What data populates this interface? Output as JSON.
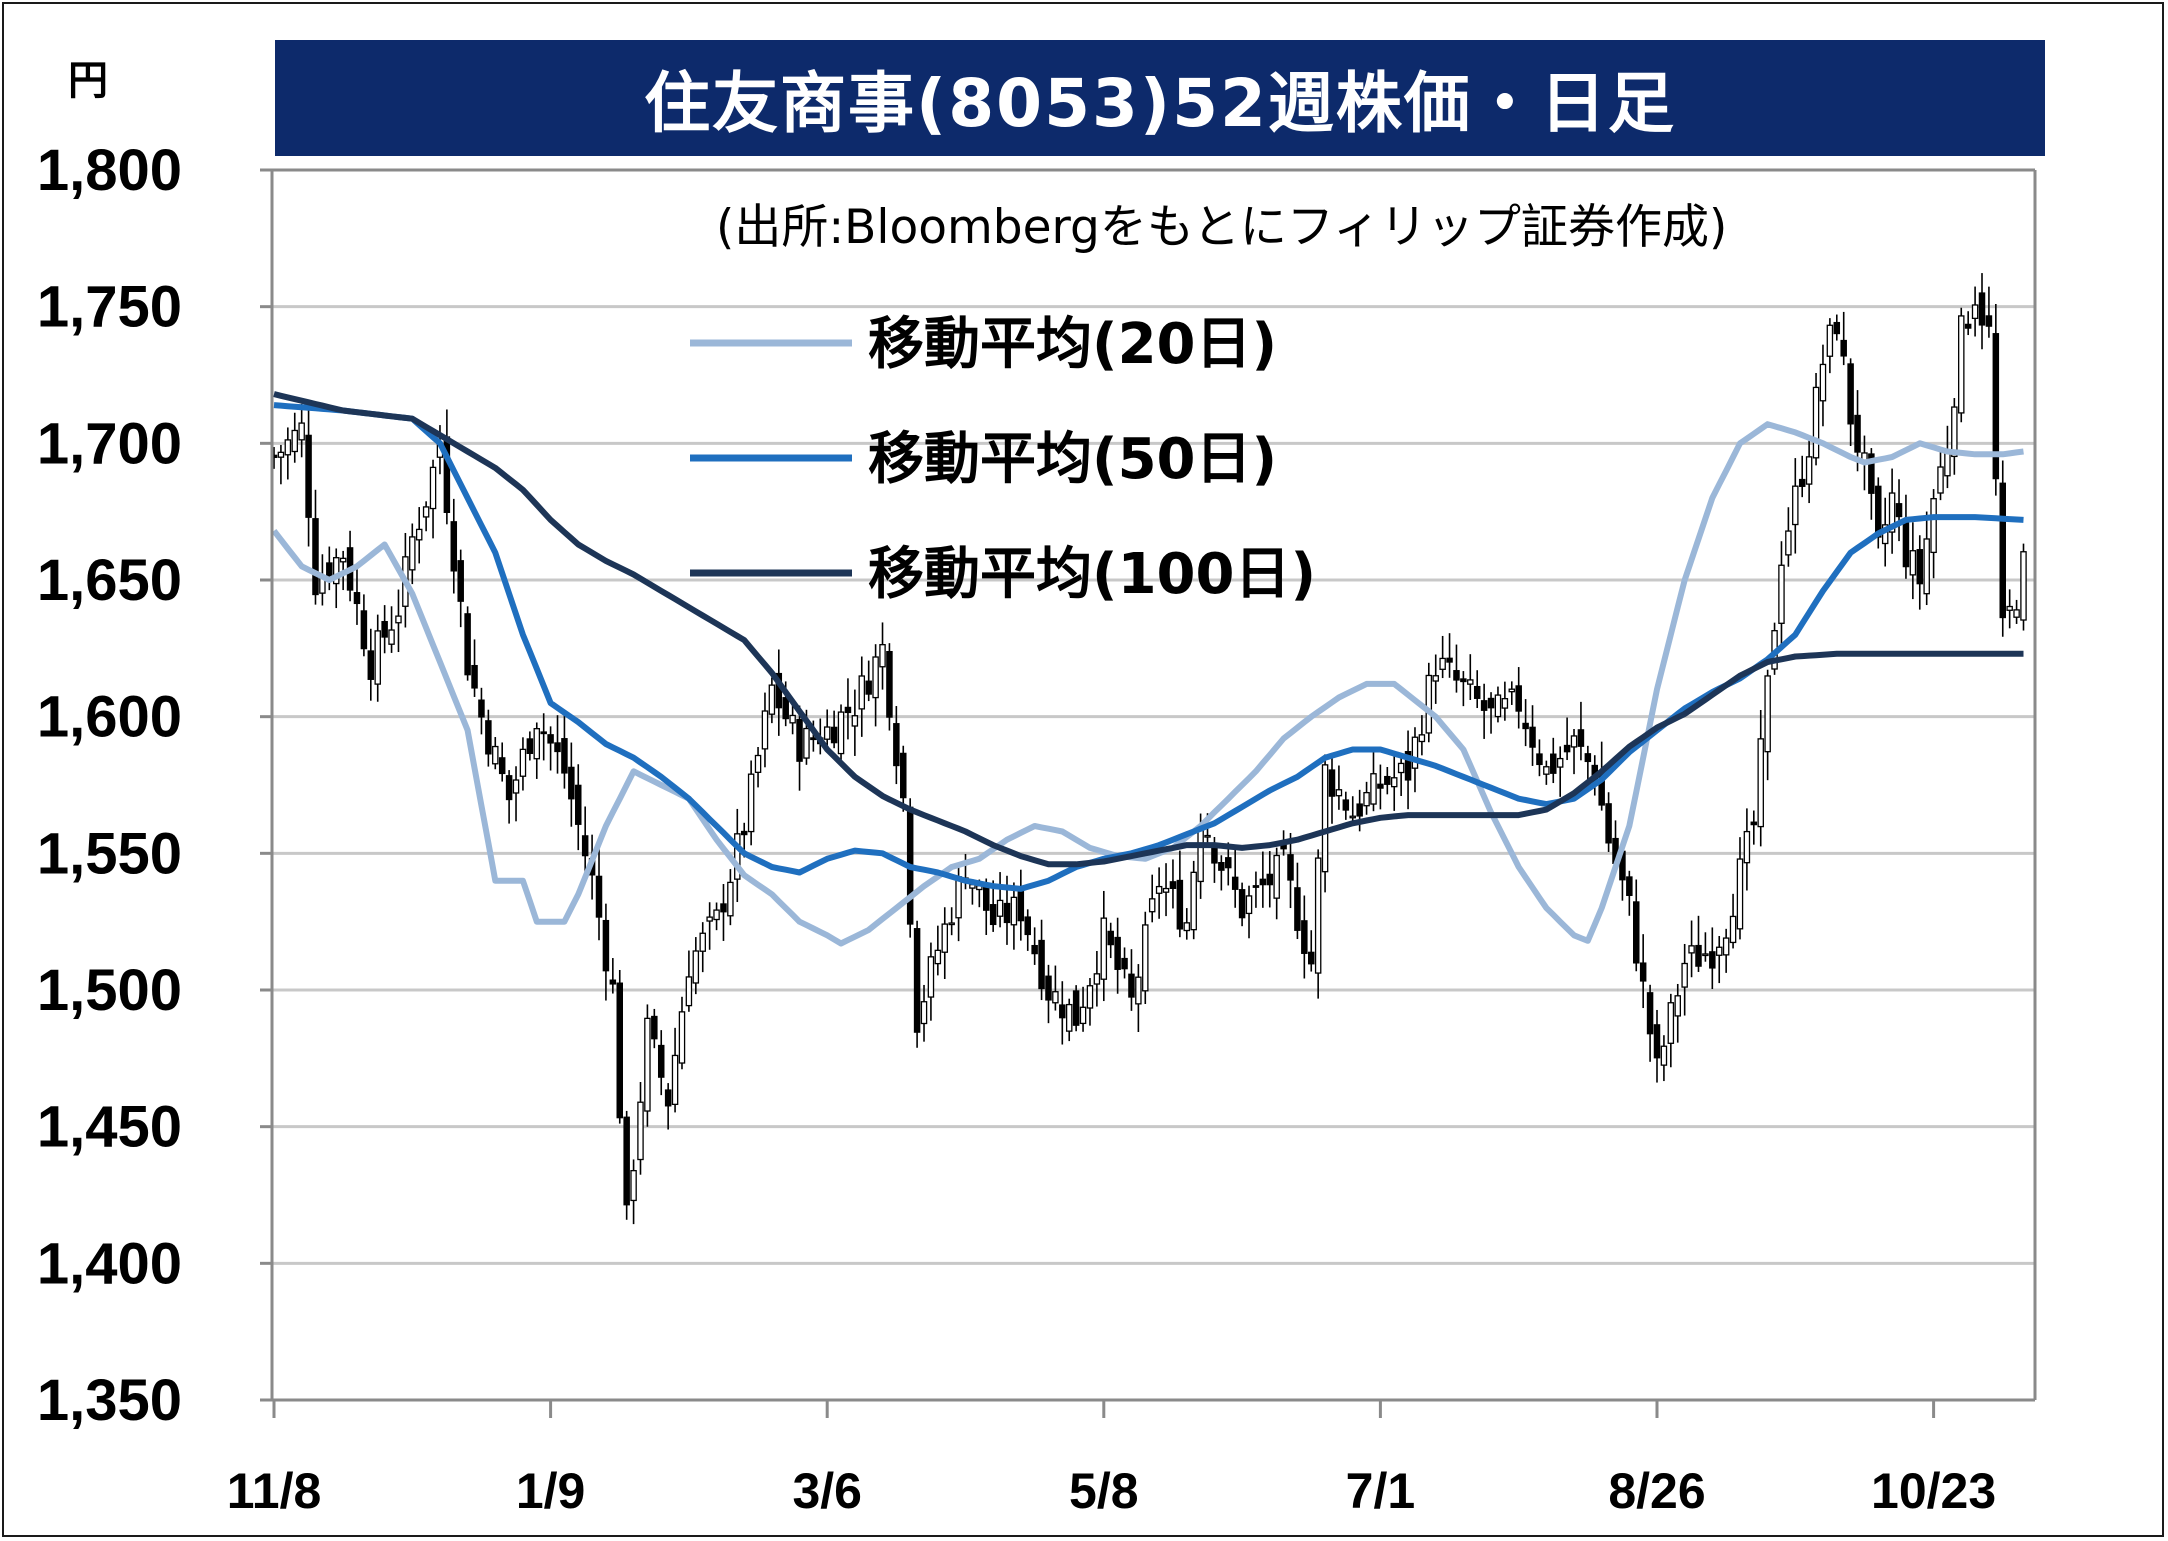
{
  "title": "住友商事(8053)52週株価・日足",
  "source": "(出所:Bloombergをもとにフィリップ証券作成)",
  "y_unit": "円",
  "colors": {
    "ma20": "#9bb7d8",
    "ma50": "#1f6fbf",
    "ma100": "#1d3557",
    "candle": "#000000",
    "title_bg": "#0d2a6b",
    "grid": "#c8c8c8"
  },
  "chart_data": {
    "type": "candlestick",
    "title": "住友商事(8053)52週株価・日足",
    "ylabel": "円",
    "ylim": [
      1350,
      1800
    ],
    "yticks": [
      1350,
      1400,
      1450,
      1500,
      1550,
      1600,
      1650,
      1700,
      1750,
      1800
    ],
    "ytick_labels": [
      "1,350",
      "1,400",
      "1,450",
      "1,500",
      "1,550",
      "1,600",
      "1,650",
      "1,700",
      "1,750",
      "1,800"
    ],
    "xtick_labels": [
      "11/8",
      "1/9",
      "3/6",
      "5/8",
      "7/1",
      "8/26",
      "10/23"
    ],
    "xtick_index": [
      0,
      40,
      80,
      120,
      160,
      200,
      240
    ],
    "n_days": 254,
    "legend": [
      {
        "name": "移動平均(20日)",
        "key": "ma20"
      },
      {
        "name": "移動平均(50日)",
        "key": "ma50"
      },
      {
        "name": "移動平均(100日)",
        "key": "ma100"
      }
    ],
    "grid": true,
    "candle_keyframes": [
      [
        0,
        1695
      ],
      [
        4,
        1705
      ],
      [
        6,
        1650
      ],
      [
        10,
        1660
      ],
      [
        14,
        1620
      ],
      [
        18,
        1640
      ],
      [
        20,
        1665
      ],
      [
        22,
        1680
      ],
      [
        24,
        1700
      ],
      [
        28,
        1620
      ],
      [
        30,
        1600
      ],
      [
        34,
        1570
      ],
      [
        38,
        1600
      ],
      [
        42,
        1580
      ],
      [
        46,
        1540
      ],
      [
        49,
        1500
      ],
      [
        51,
        1415
      ],
      [
        54,
        1485
      ],
      [
        57,
        1460
      ],
      [
        60,
        1510
      ],
      [
        64,
        1525
      ],
      [
        68,
        1560
      ],
      [
        72,
        1610
      ],
      [
        76,
        1590
      ],
      [
        80,
        1595
      ],
      [
        84,
        1605
      ],
      [
        88,
        1625
      ],
      [
        91,
        1570
      ],
      [
        93,
        1490
      ],
      [
        96,
        1515
      ],
      [
        100,
        1545
      ],
      [
        104,
        1525
      ],
      [
        108,
        1530
      ],
      [
        112,
        1500
      ],
      [
        116,
        1490
      ],
      [
        120,
        1520
      ],
      [
        124,
        1495
      ],
      [
        128,
        1540
      ],
      [
        132,
        1525
      ],
      [
        134,
        1565
      ],
      [
        138,
        1540
      ],
      [
        140,
        1530
      ],
      [
        146,
        1545
      ],
      [
        150,
        1510
      ],
      [
        152,
        1580
      ],
      [
        156,
        1565
      ],
      [
        160,
        1575
      ],
      [
        164,
        1580
      ],
      [
        168,
        1620
      ],
      [
        172,
        1610
      ],
      [
        176,
        1600
      ],
      [
        180,
        1605
      ],
      [
        184,
        1580
      ],
      [
        188,
        1590
      ],
      [
        191,
        1580
      ],
      [
        193,
        1555
      ],
      [
        196,
        1530
      ],
      [
        198,
        1500
      ],
      [
        200,
        1470
      ],
      [
        202,
        1490
      ],
      [
        204,
        1510
      ],
      [
        208,
        1515
      ],
      [
        210,
        1525
      ],
      [
        214,
        1560
      ],
      [
        216,
        1610
      ],
      [
        218,
        1660
      ],
      [
        220,
        1680
      ],
      [
        222,
        1700
      ],
      [
        224,
        1730
      ],
      [
        226,
        1745
      ],
      [
        228,
        1710
      ],
      [
        230,
        1690
      ],
      [
        232,
        1660
      ],
      [
        234,
        1680
      ],
      [
        236,
        1660
      ],
      [
        238,
        1650
      ],
      [
        240,
        1680
      ],
      [
        242,
        1700
      ],
      [
        244,
        1740
      ],
      [
        246,
        1755
      ],
      [
        248,
        1740
      ],
      [
        250,
        1630
      ],
      [
        252,
        1645
      ],
      [
        253,
        1655
      ]
    ],
    "ma20_keyframes": [
      [
        0,
        1668
      ],
      [
        4,
        1655
      ],
      [
        8,
        1650
      ],
      [
        12,
        1655
      ],
      [
        16,
        1663
      ],
      [
        20,
        1645
      ],
      [
        24,
        1620
      ],
      [
        28,
        1595
      ],
      [
        32,
        1540
      ],
      [
        36,
        1540
      ],
      [
        38,
        1525
      ],
      [
        42,
        1525
      ],
      [
        44,
        1535
      ],
      [
        48,
        1560
      ],
      [
        52,
        1580
      ],
      [
        56,
        1575
      ],
      [
        60,
        1570
      ],
      [
        64,
        1555
      ],
      [
        68,
        1542
      ],
      [
        72,
        1535
      ],
      [
        76,
        1525
      ],
      [
        80,
        1520
      ],
      [
        82,
        1517
      ],
      [
        86,
        1522
      ],
      [
        90,
        1530
      ],
      [
        94,
        1538
      ],
      [
        98,
        1545
      ],
      [
        102,
        1548
      ],
      [
        106,
        1555
      ],
      [
        110,
        1560
      ],
      [
        114,
        1558
      ],
      [
        118,
        1552
      ],
      [
        122,
        1549
      ],
      [
        126,
        1548
      ],
      [
        130,
        1552
      ],
      [
        134,
        1560
      ],
      [
        138,
        1570
      ],
      [
        142,
        1580
      ],
      [
        146,
        1592
      ],
      [
        150,
        1600
      ],
      [
        154,
        1607
      ],
      [
        158,
        1612
      ],
      [
        162,
        1612
      ],
      [
        164,
        1608
      ],
      [
        168,
        1600
      ],
      [
        172,
        1588
      ],
      [
        176,
        1565
      ],
      [
        180,
        1545
      ],
      [
        184,
        1530
      ],
      [
        188,
        1520
      ],
      [
        190,
        1518
      ],
      [
        192,
        1530
      ],
      [
        196,
        1560
      ],
      [
        200,
        1610
      ],
      [
        204,
        1650
      ],
      [
        208,
        1680
      ],
      [
        212,
        1700
      ],
      [
        216,
        1707
      ],
      [
        220,
        1704
      ],
      [
        224,
        1700
      ],
      [
        228,
        1695
      ],
      [
        230,
        1693
      ],
      [
        234,
        1695
      ],
      [
        238,
        1700
      ],
      [
        242,
        1697
      ],
      [
        246,
        1696
      ],
      [
        250,
        1696
      ],
      [
        253,
        1697
      ]
    ],
    "ma50_keyframes": [
      [
        0,
        1714
      ],
      [
        10,
        1712
      ],
      [
        20,
        1709
      ],
      [
        24,
        1700
      ],
      [
        28,
        1680
      ],
      [
        32,
        1660
      ],
      [
        36,
        1630
      ],
      [
        40,
        1605
      ],
      [
        44,
        1598
      ],
      [
        48,
        1590
      ],
      [
        52,
        1585
      ],
      [
        56,
        1578
      ],
      [
        60,
        1570
      ],
      [
        64,
        1560
      ],
      [
        68,
        1550
      ],
      [
        72,
        1545
      ],
      [
        76,
        1543
      ],
      [
        80,
        1548
      ],
      [
        84,
        1551
      ],
      [
        88,
        1550
      ],
      [
        92,
        1545
      ],
      [
        96,
        1543
      ],
      [
        100,
        1540
      ],
      [
        104,
        1538
      ],
      [
        108,
        1537
      ],
      [
        112,
        1540
      ],
      [
        116,
        1545
      ],
      [
        120,
        1548
      ],
      [
        124,
        1550
      ],
      [
        128,
        1553
      ],
      [
        132,
        1557
      ],
      [
        136,
        1561
      ],
      [
        140,
        1567
      ],
      [
        144,
        1573
      ],
      [
        148,
        1578
      ],
      [
        152,
        1585
      ],
      [
        156,
        1588
      ],
      [
        160,
        1588
      ],
      [
        164,
        1585
      ],
      [
        168,
        1582
      ],
      [
        172,
        1578
      ],
      [
        176,
        1574
      ],
      [
        180,
        1570
      ],
      [
        184,
        1568
      ],
      [
        188,
        1570
      ],
      [
        192,
        1577
      ],
      [
        196,
        1587
      ],
      [
        200,
        1595
      ],
      [
        204,
        1603
      ],
      [
        208,
        1609
      ],
      [
        212,
        1614
      ],
      [
        216,
        1621
      ],
      [
        220,
        1630
      ],
      [
        224,
        1646
      ],
      [
        228,
        1660
      ],
      [
        232,
        1667
      ],
      [
        236,
        1672
      ],
      [
        240,
        1673
      ],
      [
        246,
        1673
      ],
      [
        253,
        1672
      ]
    ],
    "ma100_keyframes": [
      [
        0,
        1718
      ],
      [
        10,
        1712
      ],
      [
        20,
        1709
      ],
      [
        24,
        1703
      ],
      [
        28,
        1697
      ],
      [
        32,
        1691
      ],
      [
        36,
        1683
      ],
      [
        40,
        1672
      ],
      [
        44,
        1663
      ],
      [
        48,
        1657
      ],
      [
        52,
        1652
      ],
      [
        56,
        1646
      ],
      [
        60,
        1640
      ],
      [
        64,
        1634
      ],
      [
        68,
        1628
      ],
      [
        72,
        1616
      ],
      [
        76,
        1602
      ],
      [
        80,
        1588
      ],
      [
        84,
        1578
      ],
      [
        88,
        1571
      ],
      [
        92,
        1566
      ],
      [
        96,
        1562
      ],
      [
        100,
        1558
      ],
      [
        104,
        1553
      ],
      [
        108,
        1549
      ],
      [
        112,
        1546
      ],
      [
        116,
        1546
      ],
      [
        120,
        1547
      ],
      [
        124,
        1549
      ],
      [
        128,
        1551
      ],
      [
        132,
        1553
      ],
      [
        136,
        1553
      ],
      [
        140,
        1552
      ],
      [
        144,
        1553
      ],
      [
        148,
        1555
      ],
      [
        152,
        1558
      ],
      [
        156,
        1561
      ],
      [
        160,
        1563
      ],
      [
        164,
        1564
      ],
      [
        168,
        1564
      ],
      [
        172,
        1564
      ],
      [
        176,
        1564
      ],
      [
        180,
        1564
      ],
      [
        184,
        1566
      ],
      [
        188,
        1572
      ],
      [
        192,
        1580
      ],
      [
        196,
        1589
      ],
      [
        200,
        1596
      ],
      [
        204,
        1601
      ],
      [
        208,
        1608
      ],
      [
        212,
        1615
      ],
      [
        216,
        1620
      ],
      [
        220,
        1622
      ],
      [
        226,
        1623
      ],
      [
        234,
        1623
      ],
      [
        253,
        1623
      ]
    ]
  }
}
